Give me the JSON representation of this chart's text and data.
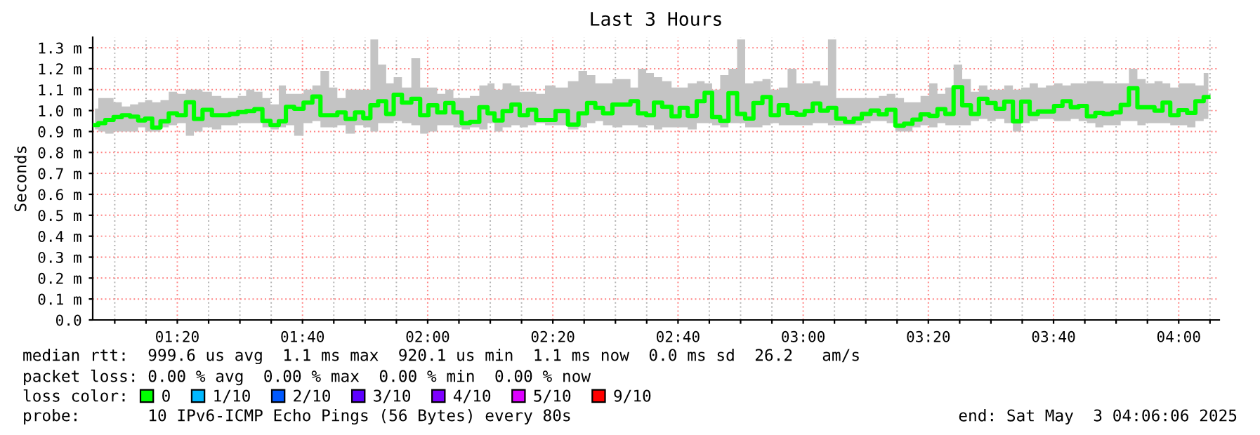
{
  "chart_data": {
    "type": "step",
    "title": "Last 3 Hours",
    "ylabel": "Seconds",
    "x": [
      1.114,
      1.132,
      1.151,
      1.176,
      1.195,
      1.22,
      1.238,
      1.257,
      1.276,
      1.301,
      1.32,
      1.345,
      1.367,
      1.388,
      1.413,
      1.438,
      1.463,
      1.482,
      1.507,
      1.526,
      1.551,
      1.569,
      1.594,
      1.613,
      1.632,
      1.657,
      1.682,
      1.704,
      1.725,
      1.75,
      1.769,
      1.794,
      1.819,
      1.838,
      1.857,
      1.879,
      1.9,
      1.919,
      1.944,
      1.969,
      1.991,
      2.013,
      2.038,
      2.056,
      2.081,
      2.1,
      2.125,
      2.15,
      2.169,
      2.187,
      2.212,
      2.234,
      2.256,
      2.278,
      2.3,
      2.325,
      2.356,
      2.391,
      2.412,
      2.437,
      2.456,
      2.478,
      2.506,
      2.531,
      2.549,
      2.571,
      2.593,
      2.612,
      2.637,
      2.662,
      2.68,
      2.705,
      2.728,
      2.747,
      2.768,
      2.79,
      2.812,
      2.836,
      2.855,
      2.88,
      2.903,
      2.924,
      2.946,
      2.971,
      2.993,
      3.015,
      3.036,
      3.055,
      3.077,
      3.099,
      3.124,
      3.145,
      3.167,
      3.192,
      3.211,
      3.234,
      3.257,
      3.28,
      3.302,
      3.323,
      3.348,
      3.367,
      3.39,
      3.411,
      3.436,
      3.457,
      3.479,
      3.502,
      3.523,
      3.548,
      3.569,
      3.592,
      3.614,
      3.636,
      3.657,
      3.679,
      3.702,
      3.723,
      3.744,
      3.767,
      3.789,
      3.81,
      3.835,
      3.856,
      3.879,
      3.901,
      3.923,
      3.948,
      3.966,
      3.989,
      4.01,
      4.035,
      4.054,
      4.079
    ],
    "series": [
      {
        "name": "0",
        "color": "#00ff00",
        "values": [
          0.931,
          0.94,
          0.955,
          0.969,
          0.978,
          0.971,
          0.953,
          0.962,
          0.919,
          0.949,
          0.987,
          0.978,
          1.04,
          0.96,
          1.004,
          0.978,
          0.978,
          0.984,
          0.993,
          0.998,
          1.007,
          0.951,
          0.931,
          0.949,
          1.018,
          1.009,
          1.038,
          1.067,
          0.978,
          0.978,
          0.991,
          0.96,
          0.991,
          0.964,
          1.025,
          1.045,
          0.984,
          1.076,
          1.038,
          1.056,
          0.978,
          1.025,
          0.991,
          1.036,
          0.991,
          0.94,
          0.946,
          1.016,
          0.987,
          0.953,
          0.998,
          1.029,
          0.978,
          1.004,
          0.955,
          0.955,
          0.998,
          0.933,
          0.987,
          1.036,
          1.013,
          0.987,
          1.029,
          1.029,
          1.045,
          0.987,
          0.978,
          1.038,
          1.018,
          0.973,
          1.013,
          0.975,
          1.045,
          1.085,
          0.969,
          0.951,
          1.083,
          0.984,
          0.962,
          1.036,
          1.065,
          0.978,
          1.025,
          0.989,
          0.98,
          0.998,
          1.034,
          1.0,
          1.013,
          0.962,
          0.946,
          0.962,
          0.984,
          1.0,
          0.982,
          1.004,
          0.928,
          0.937,
          0.957,
          0.982,
          0.975,
          1.007,
          0.984,
          1.112,
          1.025,
          0.984,
          1.056,
          1.036,
          1.009,
          1.043,
          0.949,
          1.043,
          0.984,
          0.996,
          0.996,
          1.022,
          1.045,
          1.016,
          1.022,
          0.973,
          0.989,
          0.984,
          0.991,
          1.027,
          1.107,
          1.016,
          1.016,
          1.0,
          1.038,
          0.978,
          1.002,
          0.989,
          1.045,
          1.065
        ],
        "lower": [
          0.91,
          0.9,
          0.89,
          0.9,
          0.9,
          0.9,
          0.92,
          0.9,
          0.9,
          0.92,
          0.93,
          0.94,
          0.88,
          0.9,
          0.92,
          0.91,
          0.93,
          0.93,
          0.94,
          0.94,
          0.94,
          0.92,
          0.91,
          0.92,
          0.93,
          0.88,
          0.94,
          0.95,
          0.92,
          0.92,
          0.93,
          0.89,
          0.93,
          0.92,
          0.9,
          0.94,
          0.94,
          0.95,
          0.94,
          0.93,
          0.89,
          0.9,
          0.93,
          0.93,
          0.92,
          0.91,
          0.92,
          0.91,
          0.94,
          0.9,
          0.92,
          0.93,
          0.92,
          0.93,
          0.94,
          0.93,
          0.93,
          0.91,
          0.92,
          0.94,
          0.95,
          0.93,
          0.92,
          0.93,
          0.93,
          0.92,
          0.93,
          0.91,
          0.92,
          0.92,
          0.92,
          0.91,
          0.94,
          0.94,
          0.93,
          0.92,
          0.94,
          0.94,
          0.92,
          0.92,
          0.93,
          0.94,
          0.93,
          0.93,
          0.93,
          0.93,
          0.94,
          0.94,
          0.93,
          0.93,
          0.93,
          0.93,
          0.94,
          0.95,
          0.95,
          0.94,
          0.9,
          0.9,
          0.92,
          0.93,
          0.92,
          0.94,
          0.93,
          0.93,
          0.93,
          0.95,
          0.96,
          0.95,
          0.96,
          0.94,
          0.9,
          0.94,
          0.95,
          0.96,
          0.96,
          0.95,
          0.95,
          0.96,
          0.95,
          0.94,
          0.92,
          0.93,
          0.93,
          0.95,
          0.95,
          0.93,
          0.94,
          0.94,
          0.94,
          0.93,
          0.93,
          0.92,
          0.95,
          0.96
        ],
        "upper": [
          1.01,
          1.06,
          1.06,
          1.04,
          1.02,
          1.03,
          1.04,
          1.05,
          1.04,
          1.05,
          1.09,
          1.08,
          1.1,
          1.1,
          1.09,
          1.07,
          1.06,
          1.06,
          1.07,
          1.1,
          1.09,
          1.06,
          1.03,
          1.12,
          1.08,
          1.08,
          1.1,
          1.12,
          1.19,
          1.11,
          1.06,
          1.1,
          1.1,
          1.1,
          1.34,
          1.22,
          1.13,
          1.16,
          1.11,
          1.25,
          1.11,
          1.11,
          1.08,
          1.1,
          1.06,
          1.06,
          1.07,
          1.12,
          1.13,
          1.1,
          1.13,
          1.12,
          1.09,
          1.09,
          1.08,
          1.12,
          1.11,
          1.14,
          1.19,
          1.17,
          1.13,
          1.13,
          1.15,
          1.15,
          1.11,
          1.2,
          1.18,
          1.16,
          1.14,
          1.11,
          1.11,
          1.13,
          1.14,
          1.13,
          1.1,
          1.17,
          1.2,
          1.34,
          1.13,
          1.14,
          1.15,
          1.1,
          1.11,
          1.2,
          1.13,
          1.13,
          1.14,
          1.12,
          1.34,
          1.06,
          1.06,
          1.06,
          1.06,
          1.06,
          1.07,
          1.08,
          1.06,
          1.04,
          1.04,
          1.07,
          1.13,
          1.08,
          1.11,
          1.22,
          1.15,
          1.09,
          1.12,
          1.1,
          1.1,
          1.12,
          1.1,
          1.11,
          1.13,
          1.11,
          1.12,
          1.13,
          1.12,
          1.13,
          1.13,
          1.14,
          1.14,
          1.13,
          1.13,
          1.13,
          1.2,
          1.15,
          1.13,
          1.14,
          1.13,
          1.11,
          1.13,
          1.13,
          1.12,
          1.18
        ]
      },
      {
        "name": "1/10",
        "color": "#00b8ff",
        "values": [
          null,
          null,
          null,
          null,
          null,
          null,
          null,
          null,
          null,
          null,
          null,
          null,
          null,
          null,
          null,
          null,
          null,
          null,
          null,
          null,
          null,
          null,
          null,
          null,
          null,
          null,
          null,
          null,
          null,
          null,
          null,
          null,
          null,
          null,
          null,
          null,
          null,
          null,
          null,
          null,
          null,
          null,
          null,
          null,
          null,
          null,
          null,
          null,
          null,
          null,
          null,
          null,
          null,
          null,
          null,
          null,
          null,
          null,
          null,
          null,
          null,
          null,
          null,
          null,
          null,
          null,
          null,
          null,
          null,
          null,
          null,
          null,
          null,
          null,
          null,
          null,
          null,
          null,
          null,
          null,
          null,
          null,
          null,
          null,
          null,
          null,
          null,
          null,
          null,
          null,
          null,
          null,
          null,
          null,
          null,
          null,
          null,
          null,
          null,
          null,
          null,
          null,
          null,
          null,
          null,
          null,
          null,
          null,
          null,
          null,
          null,
          null,
          null,
          null,
          null,
          null,
          null,
          null,
          null,
          null,
          null,
          null,
          null,
          null,
          null,
          null,
          null,
          null,
          null,
          null,
          null,
          null,
          null,
          null
        ]
      },
      {
        "name": "2/10",
        "color": "#0059ff",
        "values": [
          null,
          null,
          null,
          null,
          null,
          null,
          null,
          null,
          null,
          null,
          null,
          null,
          null,
          null,
          null,
          null,
          null,
          null,
          null,
          null,
          null,
          null,
          null,
          null,
          null,
          null,
          null,
          null,
          null,
          null,
          null,
          null,
          null,
          null,
          null,
          null,
          null,
          null,
          null,
          null,
          null,
          null,
          null,
          null,
          null,
          null,
          null,
          null,
          null,
          null,
          null,
          null,
          null,
          null,
          null,
          null,
          null,
          null,
          null,
          null,
          null,
          null,
          null,
          null,
          null,
          null,
          null,
          null,
          null,
          null,
          null,
          null,
          null,
          null,
          null,
          null,
          null,
          null,
          null,
          null,
          null,
          null,
          null,
          null,
          null,
          null,
          null,
          null,
          null,
          null,
          null,
          null,
          null,
          null,
          null,
          null,
          null,
          null,
          null,
          null,
          null,
          null,
          null,
          null,
          null,
          null,
          null,
          null,
          null,
          null,
          null,
          null,
          null,
          null,
          null,
          null,
          null,
          null,
          null,
          null,
          null,
          null,
          null,
          null,
          null,
          null,
          null,
          null,
          null,
          null,
          null,
          null,
          null,
          null
        ]
      },
      {
        "name": "3/10",
        "color": "#5e00ff",
        "values": [
          null,
          null,
          null,
          null,
          null,
          null,
          null,
          null,
          null,
          null,
          null,
          null,
          null,
          null,
          null,
          null,
          null,
          null,
          null,
          null,
          null,
          null,
          null,
          null,
          null,
          null,
          null,
          null,
          null,
          null,
          null,
          null,
          null,
          null,
          null,
          null,
          null,
          null,
          null,
          null,
          null,
          null,
          null,
          null,
          null,
          null,
          null,
          null,
          null,
          null,
          null,
          null,
          null,
          null,
          null,
          null,
          null,
          null,
          null,
          null,
          null,
          null,
          null,
          null,
          null,
          null,
          null,
          null,
          null,
          null,
          null,
          null,
          null,
          null,
          null,
          null,
          null,
          null,
          null,
          null,
          null,
          null,
          null,
          null,
          null,
          null,
          null,
          null,
          null,
          null,
          null,
          null,
          null,
          null,
          null,
          null,
          null,
          null,
          null,
          null,
          null,
          null,
          null,
          null,
          null,
          null,
          null,
          null,
          null,
          null,
          null,
          null,
          null,
          null,
          null,
          null,
          null,
          null,
          null,
          null,
          null,
          null,
          null,
          null,
          null,
          null,
          null,
          null,
          null,
          null,
          null,
          null,
          null,
          null
        ]
      },
      {
        "name": "4/10",
        "color": "#7e00ff",
        "values": [
          null,
          null,
          null,
          null,
          null,
          null,
          null,
          null,
          null,
          null,
          null,
          null,
          null,
          null,
          null,
          null,
          null,
          null,
          null,
          null,
          null,
          null,
          null,
          null,
          null,
          null,
          null,
          null,
          null,
          null,
          null,
          null,
          null,
          null,
          null,
          null,
          null,
          null,
          null,
          null,
          null,
          null,
          null,
          null,
          null,
          null,
          null,
          null,
          null,
          null,
          null,
          null,
          null,
          null,
          null,
          null,
          null,
          null,
          null,
          null,
          null,
          null,
          null,
          null,
          null,
          null,
          null,
          null,
          null,
          null,
          null,
          null,
          null,
          null,
          null,
          null,
          null,
          null,
          null,
          null,
          null,
          null,
          null,
          null,
          null,
          null,
          null,
          null,
          null,
          null,
          null,
          null,
          null,
          null,
          null,
          null,
          null,
          null,
          null,
          null,
          null,
          null,
          null,
          null,
          null,
          null,
          null,
          null,
          null,
          null,
          null,
          null,
          null,
          null,
          null,
          null,
          null,
          null,
          null,
          null,
          null,
          null,
          null,
          null,
          null,
          null,
          null,
          null,
          null,
          null,
          null,
          null,
          null,
          null
        ]
      },
      {
        "name": "5/10",
        "color": "#dd00ff",
        "values": [
          null,
          null,
          null,
          null,
          null,
          null,
          null,
          null,
          null,
          null,
          null,
          null,
          null,
          null,
          null,
          null,
          null,
          null,
          null,
          null,
          null,
          null,
          null,
          null,
          null,
          null,
          null,
          null,
          null,
          null,
          null,
          null,
          null,
          null,
          null,
          null,
          null,
          null,
          null,
          null,
          null,
          null,
          null,
          null,
          null,
          null,
          null,
          null,
          null,
          null,
          null,
          null,
          null,
          null,
          null,
          null,
          null,
          null,
          null,
          null,
          null,
          null,
          null,
          null,
          null,
          null,
          null,
          null,
          null,
          null,
          null,
          null,
          null,
          null,
          null,
          null,
          null,
          null,
          null,
          null,
          null,
          null,
          null,
          null,
          null,
          null,
          null,
          null,
          null,
          null,
          null,
          null,
          null,
          null,
          null,
          null,
          null,
          null,
          null,
          null,
          null,
          null,
          null,
          null,
          null,
          null,
          null,
          null,
          null,
          null,
          null,
          null,
          null,
          null,
          null,
          null,
          null,
          null,
          null,
          null,
          null,
          null,
          null,
          null,
          null,
          null,
          null,
          null,
          null,
          null,
          null,
          null,
          null,
          null
        ]
      },
      {
        "name": "9/10",
        "color": "#ff0000",
        "values": [
          null,
          null,
          null,
          null,
          null,
          null,
          null,
          null,
          null,
          null,
          null,
          null,
          null,
          null,
          null,
          null,
          null,
          null,
          null,
          null,
          null,
          null,
          null,
          null,
          null,
          null,
          null,
          null,
          null,
          null,
          null,
          null,
          null,
          null,
          null,
          null,
          null,
          null,
          null,
          null,
          null,
          null,
          null,
          null,
          null,
          null,
          null,
          null,
          null,
          null,
          null,
          null,
          null,
          null,
          null,
          null,
          null,
          null,
          null,
          null,
          null,
          null,
          null,
          null,
          null,
          null,
          null,
          null,
          null,
          null,
          null,
          null,
          null,
          null,
          null,
          null,
          null,
          null,
          null,
          null,
          null,
          null,
          null,
          null,
          null,
          null,
          null,
          null,
          null,
          null,
          null,
          null,
          null,
          null,
          null,
          null,
          null,
          null,
          null,
          null,
          null,
          null,
          null,
          null,
          null,
          null,
          null,
          null,
          null,
          null,
          null,
          null,
          null,
          null,
          null,
          null,
          null,
          null,
          null,
          null,
          null,
          null,
          null,
          null,
          null,
          null,
          null,
          null,
          null,
          null,
          null,
          null,
          null,
          null
        ]
      }
    ],
    "xlim": [
      1.108,
      4.108
    ],
    "xticks": [
      {
        "value": 1.1667,
        "label": null
      },
      {
        "value": 1.25,
        "label": null
      },
      {
        "value": 1.3333,
        "label": "01:20"
      },
      {
        "value": 1.4167,
        "label": null
      },
      {
        "value": 1.5,
        "label": null
      },
      {
        "value": 1.5833,
        "label": null
      },
      {
        "value": 1.6667,
        "label": "01:40"
      },
      {
        "value": 1.75,
        "label": null
      },
      {
        "value": 1.8333,
        "label": null
      },
      {
        "value": 1.9167,
        "label": null
      },
      {
        "value": 2,
        "label": "02:00"
      },
      {
        "value": 2.0833,
        "label": null
      },
      {
        "value": 2.1667,
        "label": null
      },
      {
        "value": 2.25,
        "label": null
      },
      {
        "value": 2.3333,
        "label": "02:20"
      },
      {
        "value": 2.4167,
        "label": null
      },
      {
        "value": 2.5,
        "label": null
      },
      {
        "value": 2.5833,
        "label": null
      },
      {
        "value": 2.6667,
        "label": "02:40"
      },
      {
        "value": 2.75,
        "label": null
      },
      {
        "value": 2.8333,
        "label": null
      },
      {
        "value": 2.9167,
        "label": null
      },
      {
        "value": 3,
        "label": "03:00"
      },
      {
        "value": 3.0833,
        "label": null
      },
      {
        "value": 3.1667,
        "label": null
      },
      {
        "value": 3.25,
        "label": null
      },
      {
        "value": 3.3333,
        "label": "03:20"
      },
      {
        "value": 3.4167,
        "label": null
      },
      {
        "value": 3.5,
        "label": null
      },
      {
        "value": 3.5833,
        "label": null
      },
      {
        "value": 3.6667,
        "label": "03:40"
      },
      {
        "value": 3.75,
        "label": null
      },
      {
        "value": 3.8333,
        "label": null
      },
      {
        "value": 3.9167,
        "label": null
      },
      {
        "value": 4,
        "label": "04:00"
      },
      {
        "value": 4.0833,
        "label": null
      }
    ],
    "ylim": [
      0,
      1.35
    ],
    "yticks": [
      {
        "value": 0,
        "label": "0.0"
      },
      {
        "value": 0.1,
        "label": "0.1 m"
      },
      {
        "value": 0.2,
        "label": "0.2 m"
      },
      {
        "value": 0.3,
        "label": "0.3 m"
      },
      {
        "value": 0.4,
        "label": "0.4 m"
      },
      {
        "value": 0.5,
        "label": "0.5 m"
      },
      {
        "value": 0.6,
        "label": "0.6 m"
      },
      {
        "value": 0.7,
        "label": "0.7 m"
      },
      {
        "value": 0.8,
        "label": "0.8 m"
      },
      {
        "value": 0.9,
        "label": "0.9 m"
      },
      {
        "value": 1.0,
        "label": "1.0 m"
      },
      {
        "value": 1.1,
        "label": "1.1 m"
      },
      {
        "value": 1.2,
        "label": "1.2 m"
      },
      {
        "value": 1.3,
        "label": "1.3 m"
      }
    ],
    "grid": true,
    "legend": "bottom",
    "annotations": [
      "median rtt:  999.6 us avg  1.1 ms max  920.1 us min  1.1 ms now  0.0 ms sd  26.2   am/s",
      "packet loss: 0.00 % avg  0.00 % max  0.00 % min  0.00 % now",
      "loss color:",
      "probe:       10 IPv6-ICMP Echo Pings (56 Bytes) every 80s",
      "end: Sat May  3 04:06:06 2025"
    ]
  }
}
